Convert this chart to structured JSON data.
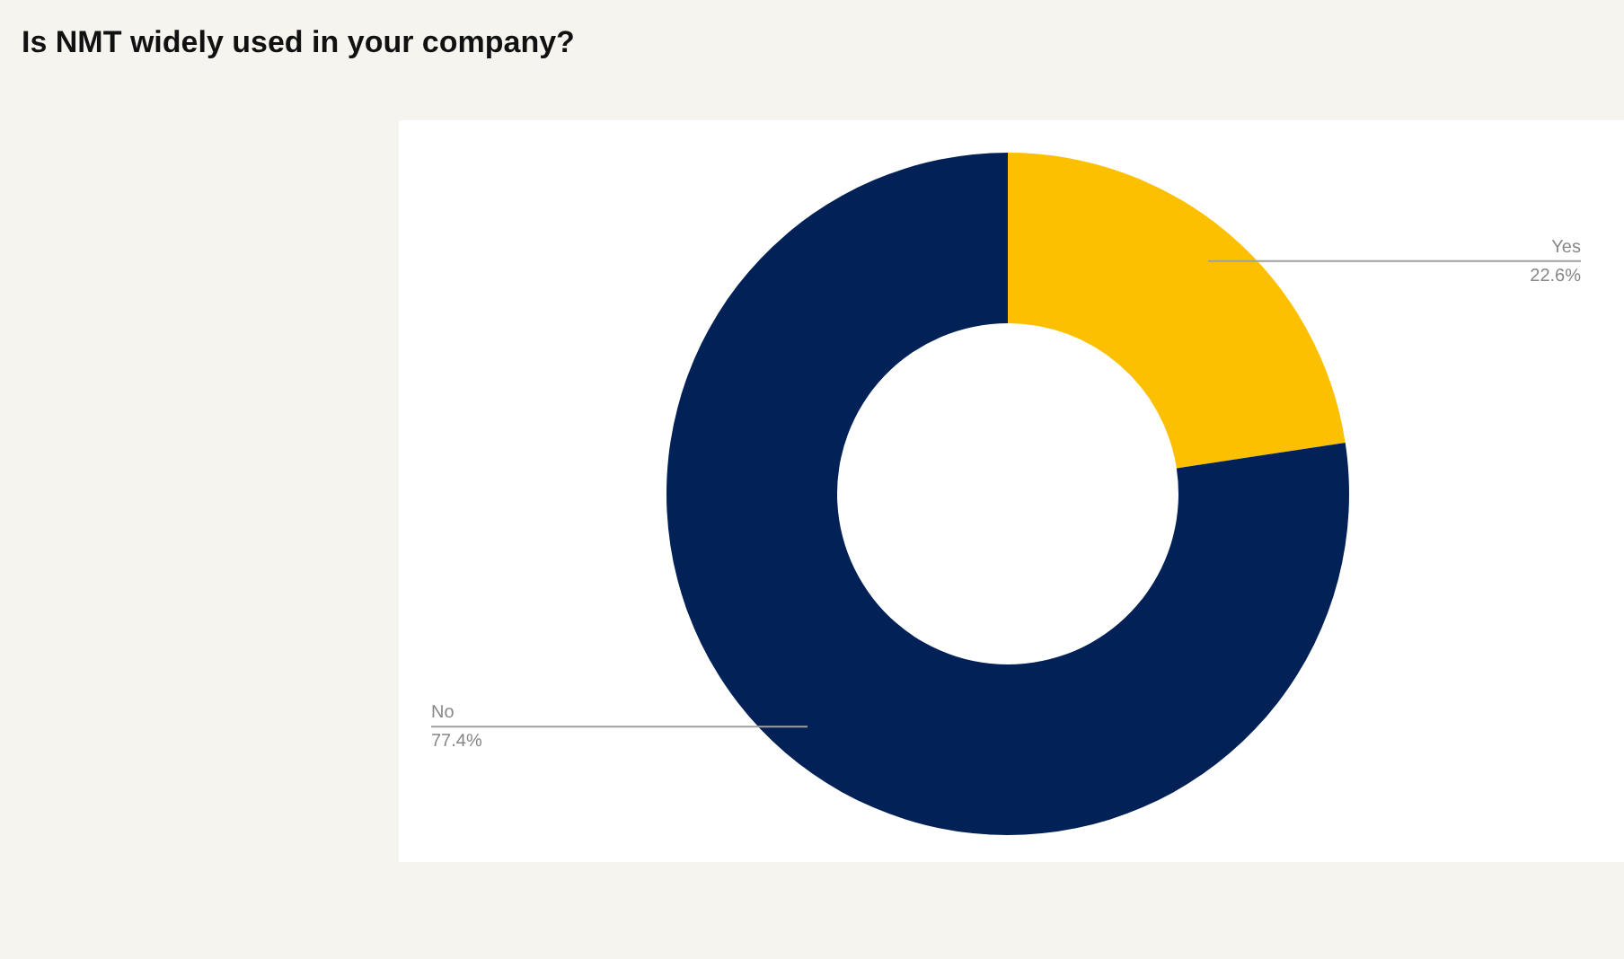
{
  "chart_data": {
    "type": "donut",
    "title": "Is NMT widely used in your company?",
    "categories": [
      "Yes",
      "No"
    ],
    "values": [
      22.6,
      77.4
    ],
    "value_labels": [
      "22.6%",
      "77.4%"
    ],
    "colors": [
      "#fcc000",
      "#012157"
    ]
  }
}
